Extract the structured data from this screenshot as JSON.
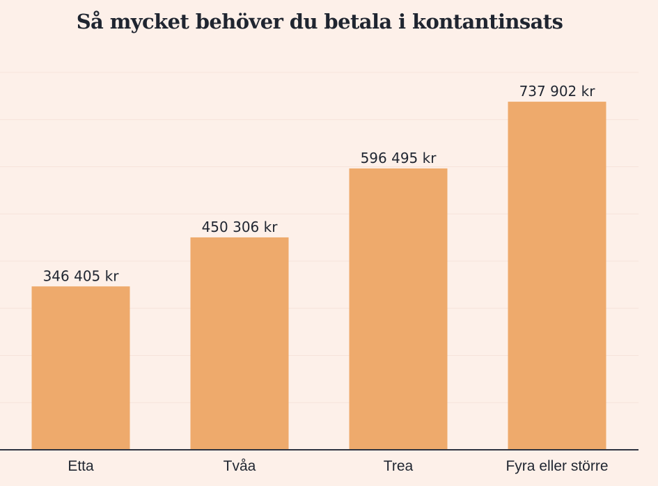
{
  "chart_data": {
    "type": "bar",
    "title": "Så mycket behöver du betala i kontantinsats",
    "categories": [
      "Etta",
      "Tvåa",
      "Trea",
      "Fyra eller större"
    ],
    "values": [
      346405,
      450306,
      596495,
      737902
    ],
    "value_labels": [
      "346 405 kr",
      "450 306 kr",
      "596 495 kr",
      "737 902 kr"
    ],
    "xlabel": "",
    "ylabel": "",
    "ylim": [
      0,
      800000
    ],
    "grid": true,
    "grid_step": 100000,
    "legend": "none"
  },
  "colors": {
    "bar": "#eeaa6c",
    "background": "#fdf0e9",
    "text": "#1f2530"
  }
}
